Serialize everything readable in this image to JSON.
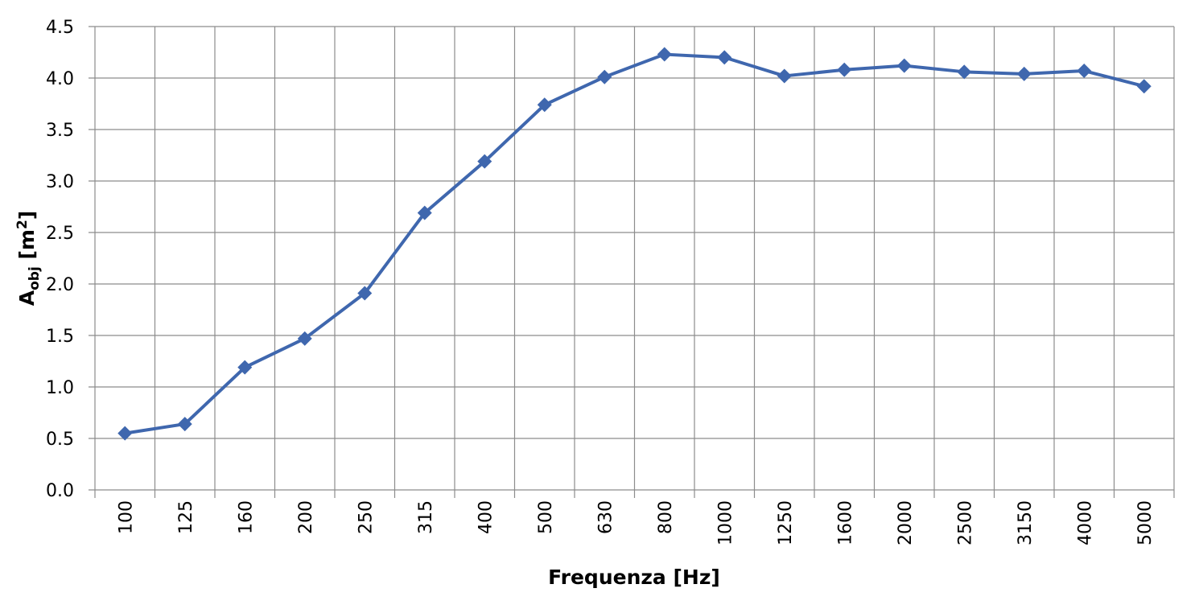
{
  "chart_data": {
    "type": "line",
    "xlabel": "Frequenza [Hz]",
    "ylabel": {
      "main": "A",
      "sub": "obj",
      "unit": " [m",
      "sup": "2",
      "end": "]"
    },
    "categories": [
      "100",
      "125",
      "160",
      "200",
      "250",
      "315",
      "400",
      "500",
      "630",
      "800",
      "1000",
      "1250",
      "1600",
      "2000",
      "2500",
      "3150",
      "4000",
      "5000"
    ],
    "values": [
      0.55,
      0.64,
      1.19,
      1.47,
      1.91,
      2.69,
      3.19,
      3.74,
      4.01,
      4.23,
      4.2,
      4.02,
      4.08,
      4.12,
      4.06,
      4.04,
      4.07,
      3.92
    ],
    "color": "#3f67ae",
    "ylim": [
      0,
      4.5
    ],
    "yticks": [
      {
        "value": 0,
        "label": "0.0"
      },
      0.5,
      {
        "value": 1,
        "label": "1.0"
      },
      1.5,
      {
        "value": 2,
        "label": "2.0"
      },
      2.5,
      {
        "value": 3,
        "label": "3.0"
      },
      3.5,
      {
        "value": 4,
        "label": "4.0"
      },
      4.5
    ],
    "grid": true
  }
}
